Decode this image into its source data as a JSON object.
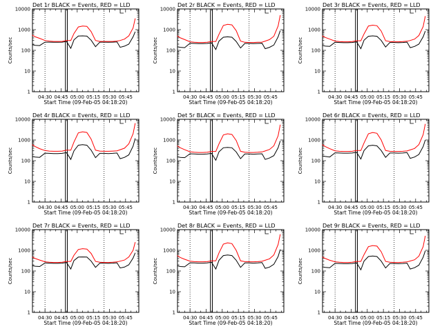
{
  "figure": {
    "xlabel": "Start Time (09-Feb-05 04:18:20)",
    "ylabel": "Counts/sec",
    "x_tick_labels": [
      "04:30",
      "04:45",
      "05:00",
      "05:15",
      "05:30",
      "05:45"
    ],
    "y_tick_labels": [
      "1",
      "10",
      "100",
      "1000",
      "10000"
    ],
    "colors": {
      "events": "#000000",
      "lld": "#ff0000",
      "background": "#ffffff"
    }
  },
  "chart_data": [
    {
      "type": "line",
      "title": "Det 1r BLACK = Events, RED = LLD",
      "x": [
        "04:18",
        "04:21",
        "04:25",
        "04:30",
        "04:34",
        "04:38",
        "04:42",
        "04:46",
        "04:50",
        "04:54",
        "04:57",
        "05:01",
        "05:05",
        "05:09",
        "05:13",
        "05:17",
        "05:21",
        "05:25",
        "05:29",
        "05:33",
        "05:37",
        "05:40",
        "05:44",
        "05:48",
        "05:52",
        "05:54"
      ],
      "series": [
        {
          "name": "Events",
          "values": [
            190,
            175,
            170,
            250,
            250,
            245,
            245,
            250,
            270,
            125,
            320,
            490,
            500,
            485,
            310,
            150,
            250,
            250,
            245,
            250,
            255,
            140,
            160,
            200,
            450,
            800
          ]
        },
        {
          "name": "LLD",
          "values": [
            550,
            450,
            380,
            300,
            280,
            270,
            270,
            270,
            300,
            300,
            650,
            1350,
            1500,
            1450,
            800,
            300,
            270,
            270,
            270,
            270,
            280,
            300,
            350,
            500,
            1200,
            3500
          ]
        }
      ],
      "ylim": [
        1,
        10000
      ],
      "yscale": "log"
    },
    {
      "type": "line",
      "title": "Det 2r BLACK = Events, RED = LLD",
      "x": [
        "04:18",
        "04:21",
        "04:25",
        "04:30",
        "04:34",
        "04:38",
        "04:42",
        "04:46",
        "04:50",
        "04:54",
        "04:57",
        "05:01",
        "05:05",
        "05:09",
        "05:13",
        "05:17",
        "05:21",
        "05:25",
        "05:29",
        "05:33",
        "05:37",
        "05:40",
        "05:44",
        "05:48",
        "05:52",
        "05:54"
      ],
      "series": [
        {
          "name": "Events",
          "values": [
            150,
            140,
            135,
            220,
            215,
            210,
            210,
            215,
            230,
            110,
            280,
            430,
            450,
            430,
            270,
            130,
            215,
            215,
            210,
            215,
            220,
            120,
            140,
            180,
            450,
            900
          ]
        },
        {
          "name": "LLD",
          "values": [
            500,
            400,
            330,
            260,
            245,
            240,
            240,
            245,
            270,
            270,
            600,
            1600,
            1800,
            1700,
            900,
            280,
            245,
            240,
            240,
            245,
            250,
            280,
            330,
            480,
            1500,
            5000
          ]
        }
      ],
      "ylim": [
        1,
        10000
      ],
      "yscale": "log"
    },
    {
      "type": "line",
      "title": "Det 3r BLACK = Events, RED = LLD",
      "x": [
        "04:18",
        "04:21",
        "04:25",
        "04:30",
        "04:34",
        "04:38",
        "04:42",
        "04:46",
        "04:50",
        "04:54",
        "04:57",
        "05:01",
        "05:05",
        "05:09",
        "05:13",
        "05:17",
        "05:21",
        "05:25",
        "05:29",
        "05:33",
        "05:37",
        "05:40",
        "05:44",
        "05:48",
        "05:52",
        "05:54"
      ],
      "series": [
        {
          "name": "Events",
          "values": [
            175,
            160,
            155,
            245,
            240,
            235,
            235,
            240,
            260,
            120,
            310,
            480,
            500,
            480,
            300,
            145,
            240,
            240,
            235,
            240,
            250,
            135,
            155,
            200,
            450,
            850
          ]
        },
        {
          "name": "LLD",
          "values": [
            500,
            420,
            350,
            280,
            265,
            260,
            260,
            265,
            290,
            290,
            620,
            1500,
            1650,
            1550,
            850,
            290,
            265,
            260,
            260,
            265,
            275,
            300,
            350,
            520,
            1400,
            4500
          ]
        }
      ],
      "ylim": [
        1,
        10000
      ],
      "yscale": "log"
    },
    {
      "type": "line",
      "title": "Det 4r BLACK = Events, RED = LLD",
      "x": [
        "04:18",
        "04:21",
        "04:25",
        "04:30",
        "04:34",
        "04:38",
        "04:42",
        "04:46",
        "04:50",
        "04:54",
        "04:57",
        "05:01",
        "05:05",
        "05:09",
        "05:13",
        "05:17",
        "05:21",
        "05:25",
        "05:29",
        "05:33",
        "05:37",
        "05:40",
        "05:44",
        "05:48",
        "05:52",
        "05:54"
      ],
      "series": [
        {
          "name": "Events",
          "values": [
            160,
            150,
            145,
            230,
            225,
            220,
            220,
            225,
            245,
            115,
            300,
            560,
            600,
            560,
            320,
            140,
            225,
            225,
            220,
            225,
            235,
            125,
            145,
            190,
            500,
            1200
          ]
        },
        {
          "name": "LLD",
          "values": [
            600,
            480,
            380,
            310,
            290,
            285,
            285,
            290,
            320,
            320,
            800,
            2200,
            2500,
            2300,
            1100,
            320,
            290,
            285,
            285,
            290,
            300,
            340,
            400,
            650,
            2000,
            6500
          ]
        }
      ],
      "ylim": [
        1,
        10000
      ],
      "yscale": "log"
    },
    {
      "type": "line",
      "title": "Det 5r BLACK = Events, RED = LLD",
      "x": [
        "04:18",
        "04:21",
        "04:25",
        "04:30",
        "04:34",
        "04:38",
        "04:42",
        "04:46",
        "04:50",
        "04:54",
        "04:57",
        "05:01",
        "05:05",
        "05:09",
        "05:13",
        "05:17",
        "05:21",
        "05:25",
        "05:29",
        "05:33",
        "05:37",
        "05:40",
        "05:44",
        "05:48",
        "05:52",
        "05:54"
      ],
      "series": [
        {
          "name": "Events",
          "values": [
            155,
            145,
            140,
            215,
            210,
            205,
            205,
            210,
            225,
            105,
            270,
            420,
            440,
            420,
            265,
            125,
            210,
            210,
            205,
            210,
            215,
            115,
            135,
            175,
            420,
            900
          ]
        },
        {
          "name": "LLD",
          "values": [
            520,
            420,
            340,
            270,
            255,
            250,
            250,
            255,
            280,
            280,
            650,
            1750,
            2000,
            1850,
            950,
            285,
            255,
            250,
            250,
            255,
            265,
            295,
            350,
            520,
            1600,
            5500
          ]
        }
      ],
      "ylim": [
        1,
        10000
      ],
      "yscale": "log"
    },
    {
      "type": "line",
      "title": "Det 6r BLACK = Events, RED = LLD",
      "x": [
        "04:18",
        "04:21",
        "04:25",
        "04:30",
        "04:34",
        "04:38",
        "04:42",
        "04:46",
        "04:50",
        "04:54",
        "04:57",
        "05:01",
        "05:05",
        "05:09",
        "05:13",
        "05:17",
        "05:21",
        "05:25",
        "05:29",
        "05:33",
        "05:37",
        "05:40",
        "05:44",
        "05:48",
        "05:52",
        "05:54"
      ],
      "series": [
        {
          "name": "Events",
          "values": [
            170,
            160,
            150,
            240,
            235,
            230,
            230,
            235,
            255,
            120,
            310,
            520,
            560,
            520,
            310,
            145,
            235,
            235,
            230,
            235,
            245,
            130,
            150,
            200,
            480,
            1000
          ]
        },
        {
          "name": "LLD",
          "values": [
            600,
            480,
            380,
            300,
            285,
            280,
            280,
            285,
            310,
            310,
            720,
            2000,
            2300,
            2100,
            1000,
            310,
            285,
            280,
            280,
            285,
            295,
            330,
            390,
            600,
            1800,
            6000
          ]
        }
      ],
      "ylim": [
        1,
        10000
      ],
      "yscale": "log"
    },
    {
      "type": "line",
      "title": "Det 7r BLACK = Events, RED = LLD",
      "x": [
        "04:18",
        "04:21",
        "04:25",
        "04:30",
        "04:34",
        "04:38",
        "04:42",
        "04:46",
        "04:50",
        "04:54",
        "04:57",
        "05:01",
        "05:05",
        "05:09",
        "05:13",
        "05:17",
        "05:21",
        "05:25",
        "05:29",
        "05:33",
        "05:37",
        "05:40",
        "05:44",
        "05:48",
        "05:52",
        "05:54"
      ],
      "series": [
        {
          "name": "Events",
          "values": [
            185,
            170,
            165,
            245,
            240,
            235,
            235,
            240,
            260,
            125,
            320,
            470,
            480,
            470,
            300,
            150,
            240,
            240,
            235,
            240,
            250,
            140,
            155,
            200,
            420,
            750
          ]
        },
        {
          "name": "LLD",
          "values": [
            480,
            400,
            340,
            280,
            265,
            260,
            260,
            265,
            290,
            290,
            580,
            1100,
            1200,
            1150,
            700,
            290,
            265,
            260,
            260,
            265,
            275,
            300,
            340,
            480,
            1000,
            2500
          ]
        }
      ],
      "ylim": [
        1,
        10000
      ],
      "yscale": "log"
    },
    {
      "type": "line",
      "title": "Det 8r BLACK = Events, RED = LLD",
      "x": [
        "04:18",
        "04:21",
        "04:25",
        "04:30",
        "04:34",
        "04:38",
        "04:42",
        "04:46",
        "04:50",
        "04:54",
        "04:57",
        "05:01",
        "05:05",
        "05:09",
        "05:13",
        "05:17",
        "05:21",
        "05:25",
        "05:29",
        "05:33",
        "05:37",
        "05:40",
        "05:44",
        "05:48",
        "05:52",
        "05:54"
      ],
      "series": [
        {
          "name": "Events",
          "values": [
            180,
            165,
            160,
            250,
            245,
            240,
            240,
            245,
            265,
            125,
            330,
            560,
            600,
            560,
            330,
            150,
            245,
            245,
            240,
            245,
            255,
            135,
            155,
            210,
            500,
            1100
          ]
        },
        {
          "name": "LLD",
          "values": [
            560,
            450,
            370,
            300,
            285,
            280,
            280,
            285,
            310,
            310,
            750,
            2000,
            2300,
            2100,
            1000,
            310,
            285,
            280,
            280,
            285,
            295,
            330,
            390,
            600,
            1900,
            6000
          ]
        }
      ],
      "ylim": [
        1,
        10000
      ],
      "yscale": "log"
    },
    {
      "type": "line",
      "title": "Det 9r BLACK = Events, RED = LLD",
      "x": [
        "04:18",
        "04:21",
        "04:25",
        "04:30",
        "04:34",
        "04:38",
        "04:42",
        "04:46",
        "04:50",
        "04:54",
        "04:57",
        "05:01",
        "05:05",
        "05:09",
        "05:13",
        "05:17",
        "05:21",
        "05:25",
        "05:29",
        "05:33",
        "05:37",
        "05:40",
        "05:44",
        "05:48",
        "05:52",
        "05:54"
      ],
      "series": [
        {
          "name": "Events",
          "values": [
            160,
            150,
            145,
            235,
            230,
            225,
            225,
            230,
            250,
            115,
            300,
            500,
            530,
            500,
            300,
            140,
            230,
            230,
            225,
            230,
            240,
            125,
            145,
            190,
            460,
            950
          ]
        },
        {
          "name": "LLD",
          "values": [
            480,
            400,
            330,
            280,
            265,
            260,
            260,
            265,
            290,
            290,
            620,
            1500,
            1700,
            1600,
            850,
            290,
            265,
            260,
            260,
            265,
            275,
            305,
            350,
            520,
            1500,
            5000
          ]
        }
      ],
      "ylim": [
        1,
        10000
      ],
      "yscale": "log"
    }
  ]
}
